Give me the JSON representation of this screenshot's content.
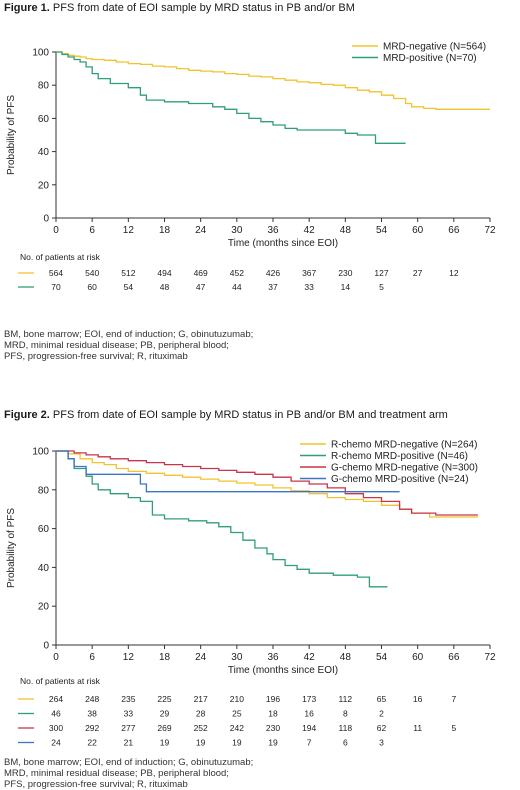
{
  "figure1": {
    "title_bold": "Figure 1.",
    "title_rest": " PFS from date of EOI sample by MRD status in PB and/or BM",
    "footnote": [
      "BM, bone marrow; EOI, end of induction; G, obinutuzumab;",
      "MRD, minimal residual disease; PB, peripheral blood;",
      "PFS, progression-free survival; R, rituximab"
    ]
  },
  "figure2": {
    "title_bold": "Figure 2.",
    "title_rest": " PFS from date of EOI sample by MRD status in PB and/or BM and treatment arm",
    "footnote": [
      "BM, bone marrow; EOI, end of induction; G, obinutuzumab;",
      "MRD, minimal residual disease; PB, peripheral blood;",
      "PFS, progression-free survival; R, rituximab"
    ]
  },
  "chart_data": [
    {
      "type": "line",
      "subtype": "kaplan-meier step",
      "title": "",
      "xlabel": "Time (months since EOI)",
      "ylabel": "Probability of PFS",
      "xlim": [
        0,
        72
      ],
      "ylim": [
        0,
        100
      ],
      "xticks": [
        0,
        6,
        12,
        18,
        24,
        30,
        36,
        42,
        48,
        54,
        60,
        66,
        72
      ],
      "yticks": [
        0,
        20,
        40,
        60,
        80,
        100
      ],
      "legend_position": "top-right",
      "risk_table_title": "No. of patients at risk",
      "series": [
        {
          "name": "MRD-negative (N=564)",
          "color": "#f2c32e",
          "x": [
            0,
            1,
            2,
            3,
            4,
            5,
            6,
            8,
            10,
            12,
            14,
            16,
            18,
            20,
            22,
            24,
            26,
            28,
            30,
            32,
            34,
            36,
            38,
            40,
            42,
            44,
            46,
            48,
            50,
            52,
            54,
            56,
            58,
            59,
            61,
            63,
            65,
            72
          ],
          "y": [
            100,
            99,
            98,
            97.5,
            97,
            96,
            95.5,
            95,
            94,
            93,
            92.5,
            91.5,
            91,
            90,
            89,
            88.5,
            88,
            87,
            86.5,
            85.5,
            85,
            84,
            83,
            82,
            81.5,
            80.5,
            80,
            78.5,
            77,
            76,
            74,
            72,
            69,
            67,
            66,
            65.5,
            65.5,
            65.5
          ],
          "at_risk": [
            564,
            540,
            512,
            494,
            469,
            452,
            426,
            367,
            230,
            127,
            27,
            12
          ]
        },
        {
          "name": "MRD-positive (N=70)",
          "color": "#2f9e7a",
          "x": [
            0,
            1,
            2,
            3,
            4,
            5,
            6,
            7,
            9,
            12,
            14,
            15,
            18,
            22,
            26,
            28,
            30,
            32,
            34,
            36,
            38,
            40,
            44,
            48,
            50,
            53,
            55,
            58
          ],
          "y": [
            100,
            98.5,
            97,
            95.5,
            94,
            91,
            87,
            84,
            81,
            78.5,
            74,
            71,
            70,
            69,
            67,
            65.5,
            63,
            60,
            58,
            56,
            54,
            53,
            53,
            51,
            50,
            45,
            45,
            45
          ],
          "at_risk": [
            70,
            60,
            54,
            48,
            47,
            44,
            37,
            33,
            14,
            5
          ]
        }
      ]
    },
    {
      "type": "line",
      "subtype": "kaplan-meier step",
      "title": "",
      "xlabel": "Time (months since EOI)",
      "ylabel": "Probability of PFS",
      "xlim": [
        0,
        72
      ],
      "ylim": [
        0,
        100
      ],
      "xticks": [
        0,
        6,
        12,
        18,
        24,
        30,
        36,
        42,
        48,
        54,
        60,
        66,
        72
      ],
      "yticks": [
        0,
        20,
        40,
        60,
        80,
        100
      ],
      "legend_position": "top-right",
      "risk_table_title": "No. of patients at risk",
      "series": [
        {
          "name": "R-chemo MRD-negative (N=264)",
          "color": "#f2c32e",
          "x": [
            0,
            2,
            4,
            6,
            8,
            10,
            12,
            15,
            18,
            21,
            24,
            27,
            30,
            33,
            36,
            39,
            42,
            45,
            48,
            51,
            54,
            57,
            59,
            62,
            70
          ],
          "y": [
            100,
            98.5,
            96,
            94,
            93,
            91,
            89.5,
            88.5,
            87.5,
            86.5,
            85.5,
            84.5,
            83.5,
            82.5,
            81,
            79.5,
            78,
            76,
            75,
            74,
            72,
            70,
            68,
            66,
            66
          ],
          "at_risk": [
            264,
            248,
            235,
            225,
            217,
            210,
            196,
            173,
            112,
            65,
            16,
            7
          ]
        },
        {
          "name": "R-chemo MRD-positive (N=46)",
          "color": "#2f9e7a",
          "x": [
            0,
            2,
            3,
            5,
            6,
            7,
            9,
            12,
            14,
            16,
            18,
            22,
            25,
            27,
            29,
            31,
            33,
            35,
            36,
            38,
            40,
            42,
            46,
            50,
            52,
            55
          ],
          "y": [
            100,
            96,
            91,
            87,
            83,
            80,
            78,
            76,
            74,
            67,
            65,
            64,
            63,
            61,
            58,
            54,
            50,
            47,
            44,
            41,
            39,
            37,
            36,
            35,
            30,
            30
          ],
          "at_risk": [
            46,
            38,
            33,
            29,
            28,
            25,
            18,
            16,
            8,
            2
          ]
        },
        {
          "name": "G-chemo MRD-negative (N=300)",
          "color": "#c8344a",
          "x": [
            0,
            3,
            5,
            7,
            9,
            12,
            15,
            18,
            21,
            24,
            27,
            30,
            33,
            36,
            39,
            42,
            45,
            48,
            51,
            54,
            57,
            59,
            63,
            70
          ],
          "y": [
            100,
            99,
            98,
            97,
            96,
            95,
            94,
            93,
            92,
            91,
            90,
            89,
            88,
            86.5,
            84.5,
            83,
            81,
            78,
            76,
            74,
            70,
            68,
            67,
            67
          ],
          "at_risk": [
            300,
            292,
            277,
            269,
            252,
            242,
            230,
            194,
            118,
            62,
            11,
            5
          ]
        },
        {
          "name": "G-chemo MRD-positive (N=24)",
          "color": "#3a76c4",
          "x": [
            0,
            2,
            3,
            5,
            6,
            14,
            15,
            30,
            36,
            42,
            48,
            57
          ],
          "y": [
            100,
            96,
            92,
            88,
            88,
            83,
            79,
            79,
            79,
            79,
            79,
            79
          ],
          "at_risk": [
            24,
            22,
            21,
            19,
            19,
            19,
            19,
            7,
            6,
            3
          ]
        }
      ]
    }
  ]
}
